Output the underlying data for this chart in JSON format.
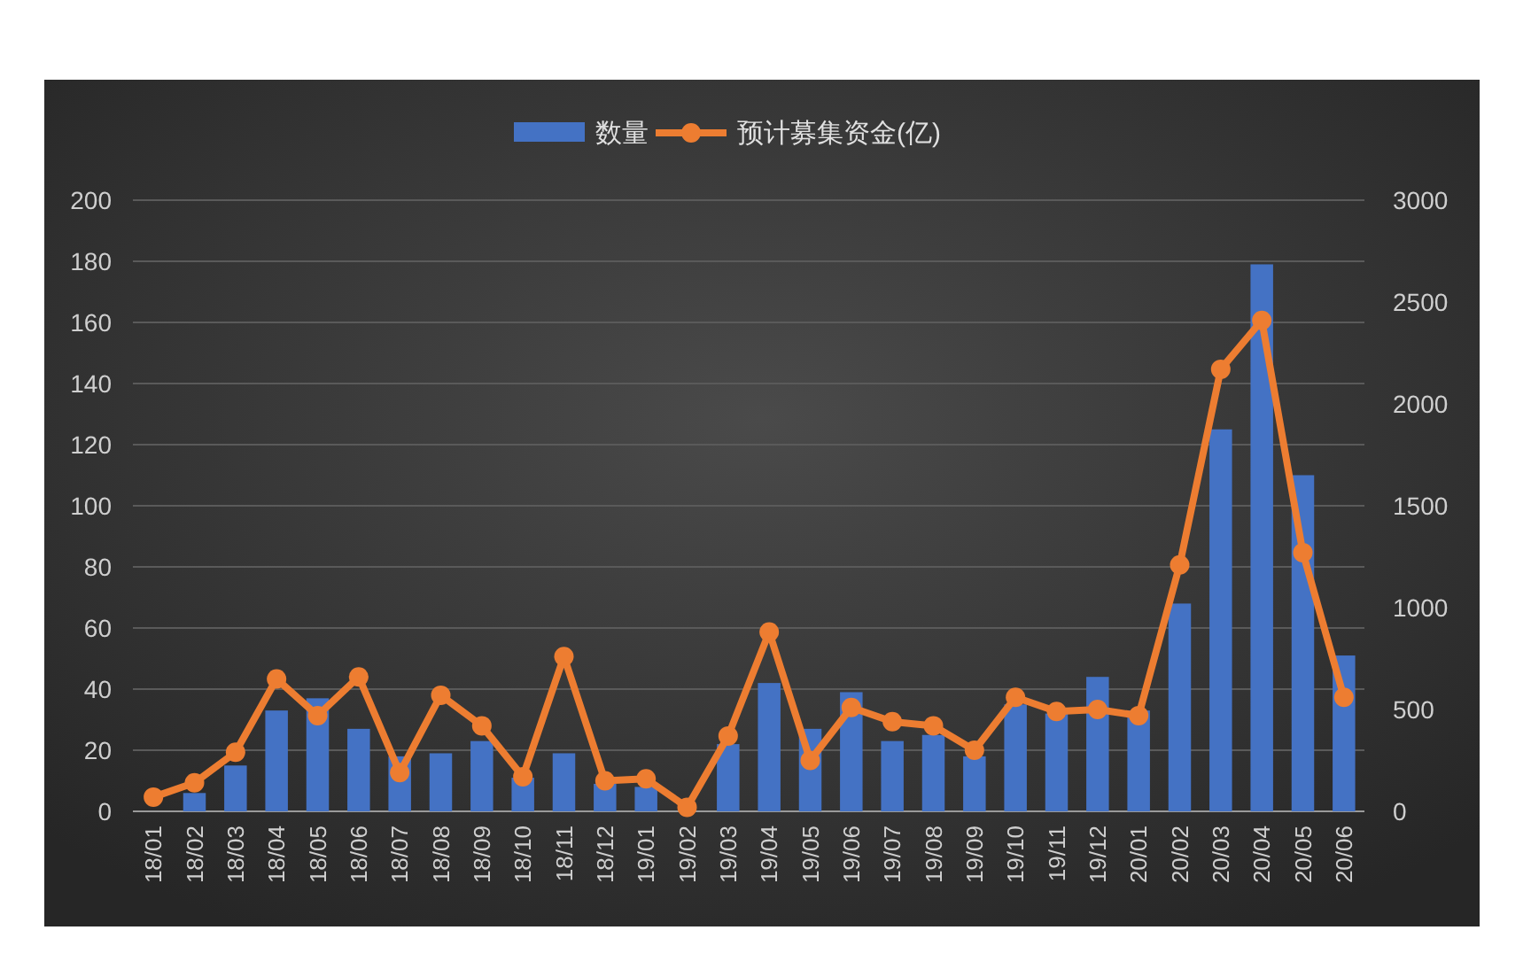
{
  "chart_data": {
    "type": "bar",
    "categories": [
      "18/01",
      "18/02",
      "18/03",
      "18/04",
      "18/05",
      "18/06",
      "18/07",
      "18/08",
      "18/09",
      "18/10",
      "18/11",
      "18/12",
      "19/01",
      "19/02",
      "19/03",
      "19/04",
      "19/05",
      "19/06",
      "19/07",
      "19/08",
      "19/09",
      "19/10",
      "19/11",
      "19/12",
      "20/01",
      "20/02",
      "20/03",
      "20/04",
      "20/05",
      "20/06"
    ],
    "series": [
      {
        "name": "数量",
        "color": "#4472c4",
        "values": [
          null,
          6,
          15,
          33,
          37,
          27,
          18,
          19,
          23,
          11,
          19,
          9,
          8,
          null,
          22,
          42,
          27,
          39,
          23,
          25,
          18,
          35,
          32,
          44,
          33,
          68,
          125,
          179,
          110,
          51
        ]
      },
      {
        "name": "预计募集资金(亿)",
        "type": "line",
        "axis": "y2",
        "color": "#ed7d31",
        "values": [
          70,
          140,
          290,
          650,
          470,
          660,
          190,
          570,
          420,
          170,
          760,
          150,
          160,
          20,
          370,
          880,
          250,
          510,
          440,
          420,
          300,
          560,
          490,
          500,
          470,
          1210,
          2170,
          2410,
          1270,
          560
        ]
      }
    ],
    "ylim": [
      0,
      200
    ],
    "yticks": [
      0,
      20,
      40,
      60,
      80,
      100,
      120,
      140,
      160,
      180,
      200
    ],
    "y2lim": [
      0,
      3000
    ],
    "y2ticks": [
      0,
      500,
      1000,
      1500,
      2000,
      2500,
      3000
    ],
    "grid": "y",
    "legend": "top",
    "marker": "circle"
  }
}
